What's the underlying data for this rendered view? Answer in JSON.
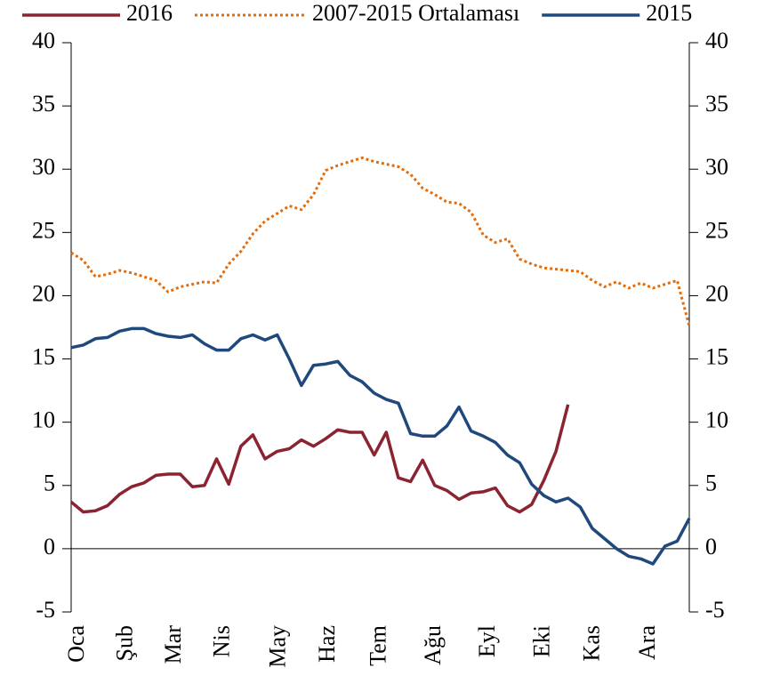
{
  "chart_data": {
    "type": "line",
    "x": [
      1,
      2,
      3,
      4,
      5,
      6,
      7,
      8,
      9,
      10,
      11,
      12,
      13,
      14,
      15,
      16,
      17,
      18,
      19,
      20,
      21,
      22,
      23,
      24,
      25,
      26,
      27,
      28,
      29,
      30,
      31,
      32,
      33,
      34,
      35,
      36,
      37,
      38,
      39,
      40,
      41,
      42,
      43,
      44,
      45,
      46,
      47,
      48,
      49,
      50,
      51,
      52
    ],
    "xlim": [
      1,
      52
    ],
    "xticks": [
      {
        "value": 1.6,
        "label": "Oca"
      },
      {
        "value": 5.6,
        "label": "Şub"
      },
      {
        "value": 9.6,
        "label": "Mar"
      },
      {
        "value": 13.6,
        "label": "Nis"
      },
      {
        "value": 18.2,
        "label": "May"
      },
      {
        "value": 22.3,
        "label": "Haz"
      },
      {
        "value": 26.5,
        "label": "Tem"
      },
      {
        "value": 31,
        "label": "Ağu"
      },
      {
        "value": 35.5,
        "label": "Eyl"
      },
      {
        "value": 40,
        "label": "Eki"
      },
      {
        "value": 44.1,
        "label": "Kas"
      },
      {
        "value": 48.7,
        "label": "Ara"
      }
    ],
    "ylim": [
      -5,
      40
    ],
    "yticks": [
      -5,
      0,
      5,
      10,
      15,
      20,
      25,
      30,
      35,
      40
    ],
    "y2lim": [
      -5,
      40
    ],
    "y2ticks": [
      -5,
      0,
      5,
      10,
      15,
      20,
      25,
      30,
      35,
      40
    ],
    "grid": false,
    "legend": "top",
    "series": [
      {
        "name": "2016",
        "color": "#8b2331",
        "dash": "solid",
        "values": [
          3.7,
          2.9,
          3.0,
          3.4,
          4.3,
          4.9,
          5.2,
          5.8,
          5.9,
          5.9,
          4.9,
          5.0,
          7.1,
          5.1,
          8.1,
          9.0,
          7.1,
          7.7,
          7.9,
          8.6,
          8.1,
          8.7,
          9.4,
          9.2,
          9.2,
          7.4,
          9.2,
          5.6,
          5.3,
          7.0,
          5.0,
          4.6,
          3.9,
          4.4,
          4.5,
          4.8,
          3.4,
          2.9,
          3.5,
          5.4,
          7.7,
          11.4,
          null,
          null,
          null,
          null,
          null,
          null,
          null,
          null,
          null,
          null
        ]
      },
      {
        "name": "2007-2015 Ortalaması",
        "color": "#e46c0a",
        "dash": "dotted",
        "values": [
          23.4,
          22.8,
          21.5,
          21.7,
          22.0,
          21.8,
          21.5,
          21.2,
          20.3,
          20.7,
          20.9,
          21.1,
          21.0,
          22.5,
          23.5,
          24.9,
          25.9,
          26.5,
          27.1,
          26.8,
          28.0,
          29.9,
          30.3,
          30.6,
          30.9,
          30.6,
          30.4,
          30.2,
          29.6,
          28.5,
          28.0,
          27.4,
          27.3,
          26.6,
          24.8,
          24.2,
          24.5,
          22.9,
          22.5,
          22.2,
          22.1,
          22.0,
          21.9,
          21.2,
          20.7,
          21.1,
          20.6,
          21.0,
          20.6,
          20.9,
          21.2,
          17.6
        ]
      },
      {
        "name": "2015",
        "color": "#1f497d",
        "dash": "solid",
        "values": [
          15.9,
          16.1,
          16.6,
          16.7,
          17.2,
          17.4,
          17.4,
          17.0,
          16.8,
          16.7,
          16.9,
          16.2,
          15.7,
          15.7,
          16.6,
          16.9,
          16.5,
          16.9,
          15.0,
          12.9,
          14.5,
          14.6,
          14.8,
          13.7,
          13.2,
          12.3,
          11.8,
          11.5,
          9.1,
          8.9,
          8.9,
          9.7,
          11.2,
          9.3,
          8.9,
          8.4,
          7.4,
          6.8,
          5.1,
          4.2,
          3.7,
          4.0,
          3.3,
          1.6,
          0.8,
          0.0,
          -0.6,
          -0.8,
          -1.2,
          0.2,
          0.6,
          2.4
        ]
      }
    ]
  }
}
